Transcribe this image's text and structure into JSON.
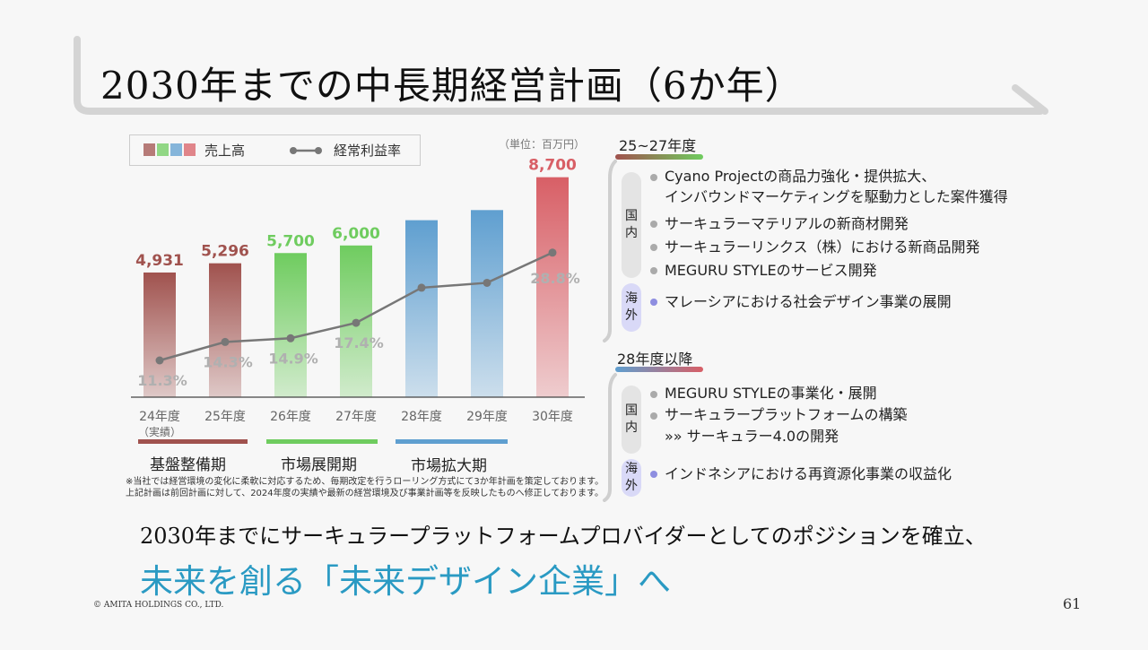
{
  "title": "2030年までの中長期経営計画（6か年）",
  "chart_data": {
    "type": "bar+line",
    "categories": [
      "24年度",
      "25年度",
      "26年度",
      "27年度",
      "28年度",
      "29年度",
      "30年度"
    ],
    "category_note": "（実績）",
    "series": [
      {
        "name": "売上高",
        "type": "bar",
        "values": [
          4931,
          5296,
          5700,
          6000,
          null,
          null,
          8700
        ],
        "labels": [
          "4,931",
          "5,296",
          "5,700",
          "6,000",
          "",
          "",
          "8,700"
        ],
        "approx_unlabeled_values": [
          null,
          null,
          null,
          null,
          7000,
          7400,
          null
        ]
      },
      {
        "name": "経常利益率",
        "type": "line",
        "values": [
          11.3,
          14.3,
          14.9,
          17.4,
          null,
          null,
          28.8
        ],
        "labels": [
          "11.3%",
          "14.3%",
          "14.9%",
          "17.4%",
          "",
          "",
          "28.8%"
        ],
        "approx_unlabeled_values": [
          null,
          null,
          null,
          null,
          23.1,
          23.9,
          null
        ]
      }
    ],
    "bar_colors": [
      "#a0524e",
      "#a0524e",
      "#6fcc5f",
      "#6fcc5f",
      "#5f9fd0",
      "#5f9fd0",
      "#d85f66"
    ],
    "unit": "（単位：百万円）",
    "legend_position": "top-left",
    "grid": false
  },
  "phases": [
    {
      "label": "基盤整備期",
      "color": "#a0524e"
    },
    {
      "label": "市場展開期",
      "color": "#6fcc5f"
    },
    {
      "label": "市場拡大期",
      "color": "#5f9fd0"
    }
  ],
  "note": "※当社では経営環境の変化に柔軟に対応するため、毎期改定を行うローリング方式にて3か年計画を策定しております。上記計画は前回計画に対して、2024年度の実績や最新の経営環境及び事業計画等を反映したものへ修正しております。",
  "sections": [
    {
      "title": "25~27年度",
      "domestic_label": [
        "国",
        "内"
      ],
      "domestic": [
        [
          "Cyano Projectの商品力強化・提供拡大、",
          "インバウンドマーケティングを駆動力とした案件獲得"
        ],
        [
          "サーキュラーマテリアルの新商材開発"
        ],
        [
          "サーキュラーリンクス（株）における新商品開発"
        ],
        [
          "MEGURU STYLEのサービス開発"
        ]
      ],
      "overseas_label": [
        "海",
        "外"
      ],
      "overseas": [
        "マレーシアにおける社会デザイン事業の展開"
      ]
    },
    {
      "title": "28年度以降",
      "domestic_label": [
        "国",
        "内"
      ],
      "domestic": [
        "MEGURU STYLEの事業化・展開",
        "サーキュラープラットフォームの構築"
      ],
      "domestic_sub": "»» サーキュラー4.0の開発",
      "overseas_label": [
        "海",
        "外"
      ],
      "overseas": [
        "インドネシアにおける再資源化事業の収益化"
      ]
    }
  ],
  "conclusion": "2030年までにサーキュラープラットフォームプロバイダーとしてのポジションを確立、",
  "tagline": "未来を創る「未来デザイン企業」へ",
  "copyright": "© AMITA HOLDINGS CO., LTD.",
  "page_number": "61"
}
